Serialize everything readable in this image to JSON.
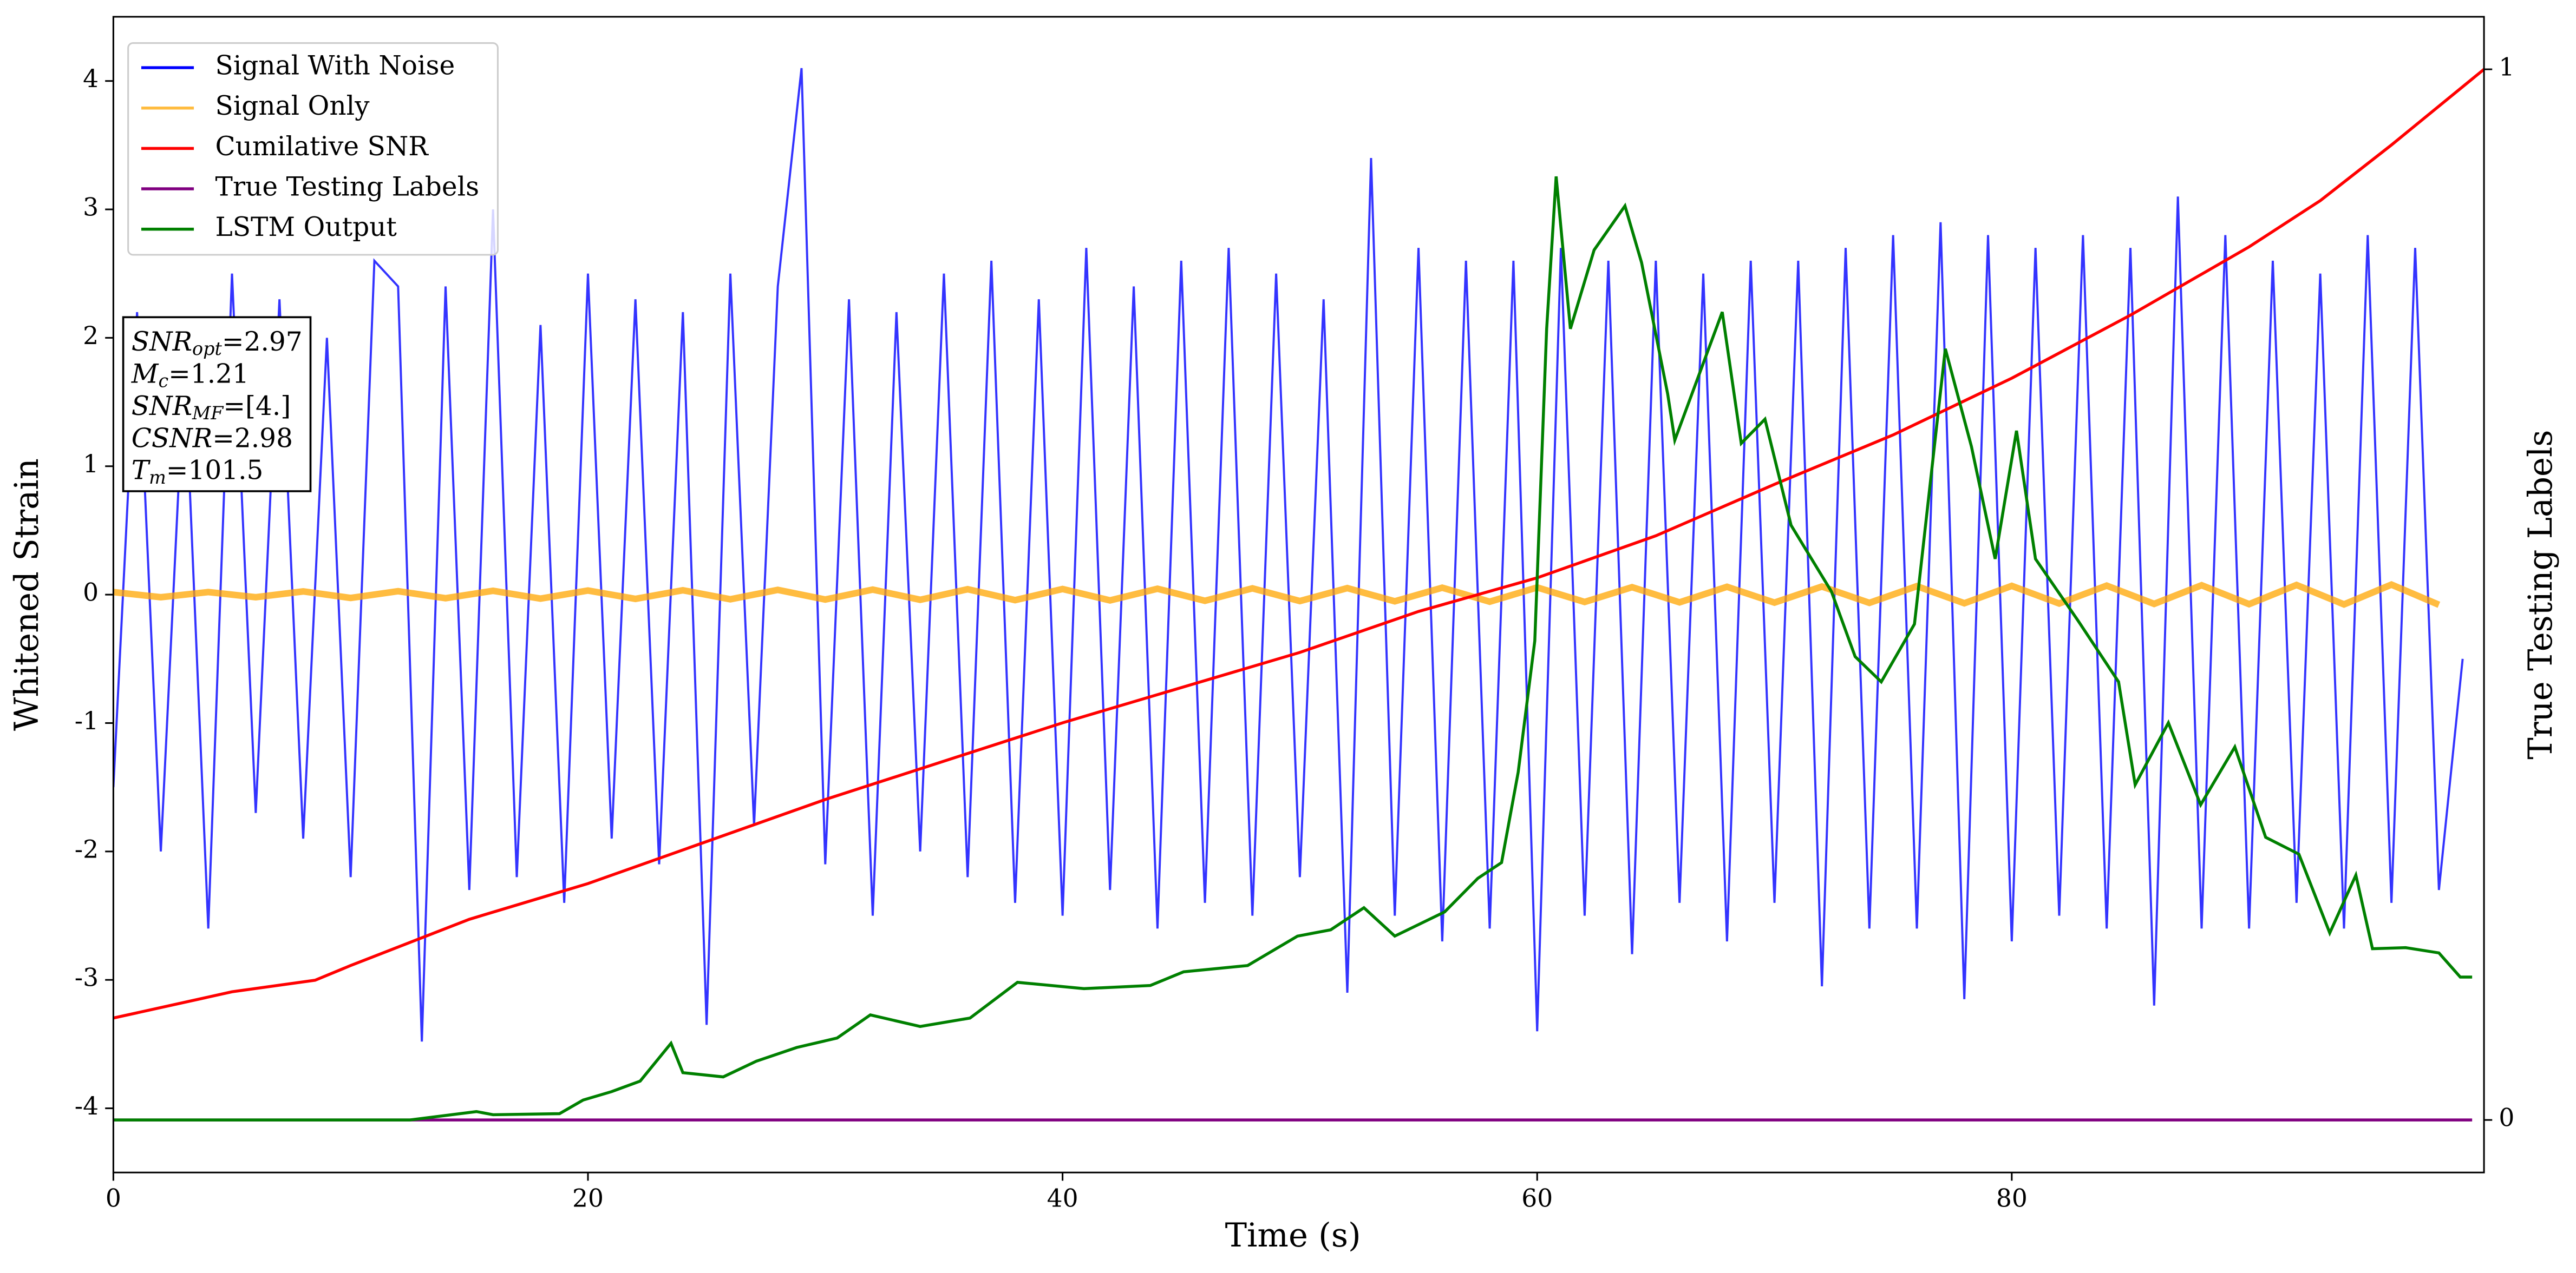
{
  "chart_data": {
    "type": "line",
    "xlabel": "Time (s)",
    "ylabel": "Whitened Strain",
    "y2label": "True Testing Labels",
    "xlim": [
      0,
      99.9
    ],
    "xticks": [
      0,
      20,
      40,
      60,
      80
    ],
    "ylim": [
      -4.5,
      4.5
    ],
    "yticks": [
      -4,
      -3,
      -2,
      -1,
      0,
      1,
      2,
      3,
      4
    ],
    "y2lim": [
      -0.05,
      1.05
    ],
    "y2ticks": [
      0,
      1
    ],
    "legend": "upper left",
    "series": [
      {
        "name": "Signal With Noise",
        "color": "#0000ff",
        "axis": "y",
        "x": [
          0,
          1,
          2,
          3,
          4,
          5,
          6,
          7,
          8,
          9,
          10,
          11,
          12,
          13,
          14,
          15,
          16,
          17,
          18,
          19,
          20,
          21,
          22,
          23,
          24,
          25,
          26,
          27,
          28,
          29,
          30,
          31,
          32,
          33,
          34,
          35,
          36,
          37,
          38,
          39,
          40,
          41,
          42,
          43,
          44,
          45,
          46,
          47,
          48,
          49,
          50,
          51,
          52,
          53,
          54,
          55,
          56,
          57,
          58,
          59,
          60,
          61,
          62,
          63,
          64,
          65,
          66,
          67,
          68,
          69,
          70,
          71,
          72,
          73,
          74,
          75,
          76,
          77,
          78,
          79,
          80,
          81,
          82,
          83,
          84,
          85,
          86,
          87,
          88,
          89,
          90,
          91,
          92,
          93,
          94,
          95,
          96,
          97,
          98,
          99
        ],
        "values": [
          -1.5,
          2.2,
          -2.0,
          1.8,
          -2.6,
          2.5,
          -1.7,
          2.3,
          -1.9,
          2.0,
          -2.2,
          2.6,
          2.4,
          -3.48,
          2.4,
          -2.3,
          3.0,
          -2.2,
          2.1,
          -2.4,
          2.5,
          -1.9,
          2.3,
          -2.1,
          2.2,
          -3.35,
          2.5,
          -1.8,
          2.4,
          4.1,
          -2.1,
          2.3,
          -2.5,
          2.2,
          -2.0,
          2.5,
          -2.2,
          2.6,
          -2.4,
          2.3,
          -2.5,
          2.7,
          -2.3,
          2.4,
          -2.6,
          2.6,
          -2.4,
          2.7,
          -2.5,
          2.5,
          -2.2,
          2.3,
          -3.1,
          3.4,
          -2.5,
          2.7,
          -2.7,
          2.6,
          -2.6,
          2.6,
          -3.4,
          2.7,
          -2.5,
          2.6,
          -2.8,
          2.6,
          -2.4,
          2.5,
          -2.7,
          2.6,
          -2.4,
          2.6,
          -3.05,
          2.7,
          -2.6,
          2.8,
          -2.6,
          2.9,
          -3.15,
          2.8,
          -2.7,
          2.7,
          -2.5,
          2.8,
          -2.6,
          2.7,
          -3.2,
          3.1,
          -2.6,
          2.8,
          -2.6,
          2.6,
          -2.4,
          2.5,
          -2.6,
          2.8,
          -2.4,
          2.7,
          -2.3,
          -0.5
        ]
      },
      {
        "name": "Signal Only",
        "color": "#ffa500",
        "axis": "y",
        "x": [
          0,
          2,
          4,
          6,
          8,
          10,
          12,
          14,
          16,
          18,
          20,
          22,
          24,
          26,
          28,
          30,
          32,
          34,
          36,
          38,
          40,
          42,
          44,
          46,
          48,
          50,
          52,
          54,
          56,
          58,
          60,
          62,
          64,
          66,
          68,
          70,
          72,
          74,
          76,
          78,
          80,
          82,
          84,
          86,
          88,
          90,
          92,
          94,
          96,
          98
        ],
        "values": [
          0.02,
          -0.02,
          0.02,
          -0.02,
          0.025,
          -0.026,
          0.027,
          -0.028,
          0.03,
          -0.031,
          0.032,
          -0.033,
          0.034,
          -0.036,
          0.037,
          -0.038,
          0.039,
          -0.04,
          0.042,
          -0.043,
          0.044,
          -0.045,
          0.046,
          -0.048,
          0.049,
          -0.05,
          0.051,
          -0.052,
          0.054,
          -0.055,
          0.056,
          -0.057,
          0.058,
          -0.06,
          0.061,
          -0.062,
          0.063,
          -0.064,
          0.066,
          -0.067,
          0.068,
          -0.069,
          0.07,
          -0.072,
          0.073,
          -0.074,
          0.075,
          -0.076,
          0.078,
          -0.079
        ]
      },
      {
        "name": "Cumilative SNR",
        "color": "#ff0000",
        "axis": "y2",
        "x": [
          0,
          5,
          8.5,
          10,
          15,
          20,
          30,
          40,
          50,
          55,
          60,
          65,
          70,
          75,
          80,
          85,
          90,
          93,
          96,
          99.9
        ],
        "values": [
          0.097,
          0.122,
          0.133,
          0.147,
          0.191,
          0.225,
          0.305,
          0.378,
          0.445,
          0.484,
          0.516,
          0.556,
          0.605,
          0.652,
          0.706,
          0.766,
          0.831,
          0.875,
          0.928,
          1.0
        ]
      },
      {
        "name": "True Testing Labels",
        "color": "#800080",
        "axis": "y2",
        "x": [
          0,
          99.4
        ],
        "values": [
          0,
          0
        ]
      },
      {
        "name": "LSTM Output",
        "color": "#008000",
        "axis": "y2",
        "x": [
          0,
          12.5,
          15.3,
          16,
          18.8,
          19.8,
          21,
          22.2,
          23.5,
          24,
          25.7,
          27.1,
          28.8,
          30.5,
          31.9,
          34,
          36.1,
          38.1,
          40.9,
          43.7,
          45.1,
          47.8,
          49.9,
          51.3,
          52.7,
          54,
          56.1,
          57.5,
          58.5,
          59.2,
          59.9,
          60.4,
          60.8,
          61.4,
          62.4,
          63.7,
          64.4,
          65.5,
          65.8,
          67.8,
          68.6,
          69.6,
          70.7,
          72.4,
          73.4,
          74.5,
          75.9,
          77.2,
          78.3,
          79.3,
          80.2,
          81,
          82.8,
          84.5,
          85.2,
          86.6,
          87.96,
          89.4,
          90.7,
          92.1,
          93.4,
          94.5,
          95.2,
          96.6,
          98,
          98.9,
          99.4
        ],
        "values": [
          0,
          0,
          0.008,
          0.005,
          0.006,
          0.019,
          0.027,
          0.037,
          0.073,
          0.045,
          0.041,
          0.056,
          0.069,
          0.078,
          0.1,
          0.089,
          0.097,
          0.131,
          0.125,
          0.128,
          0.141,
          0.147,
          0.175,
          0.181,
          0.202,
          0.175,
          0.198,
          0.23,
          0.245,
          0.331,
          0.456,
          0.753,
          0.898,
          0.753,
          0.828,
          0.87,
          0.816,
          0.691,
          0.647,
          0.769,
          0.644,
          0.667,
          0.566,
          0.503,
          0.441,
          0.417,
          0.472,
          0.734,
          0.641,
          0.534,
          0.656,
          0.534,
          0.475,
          0.417,
          0.319,
          0.378,
          0.3,
          0.355,
          0.269,
          0.253,
          0.178,
          0.233,
          0.163,
          0.164,
          0.159,
          0.136,
          0.136
        ]
      }
    ],
    "annotation": [
      {
        "text": "SNR",
        "sub": "opt",
        "value": "=2.97"
      },
      {
        "text": "M",
        "sub": "c",
        "value": "=1.21"
      },
      {
        "text": "SNR",
        "sub": "MF",
        "value": "=[4.]"
      },
      {
        "text": "CSNR",
        "value": "=2.98"
      },
      {
        "text": "T",
        "sub": "m",
        "value": "=101.5"
      }
    ]
  }
}
